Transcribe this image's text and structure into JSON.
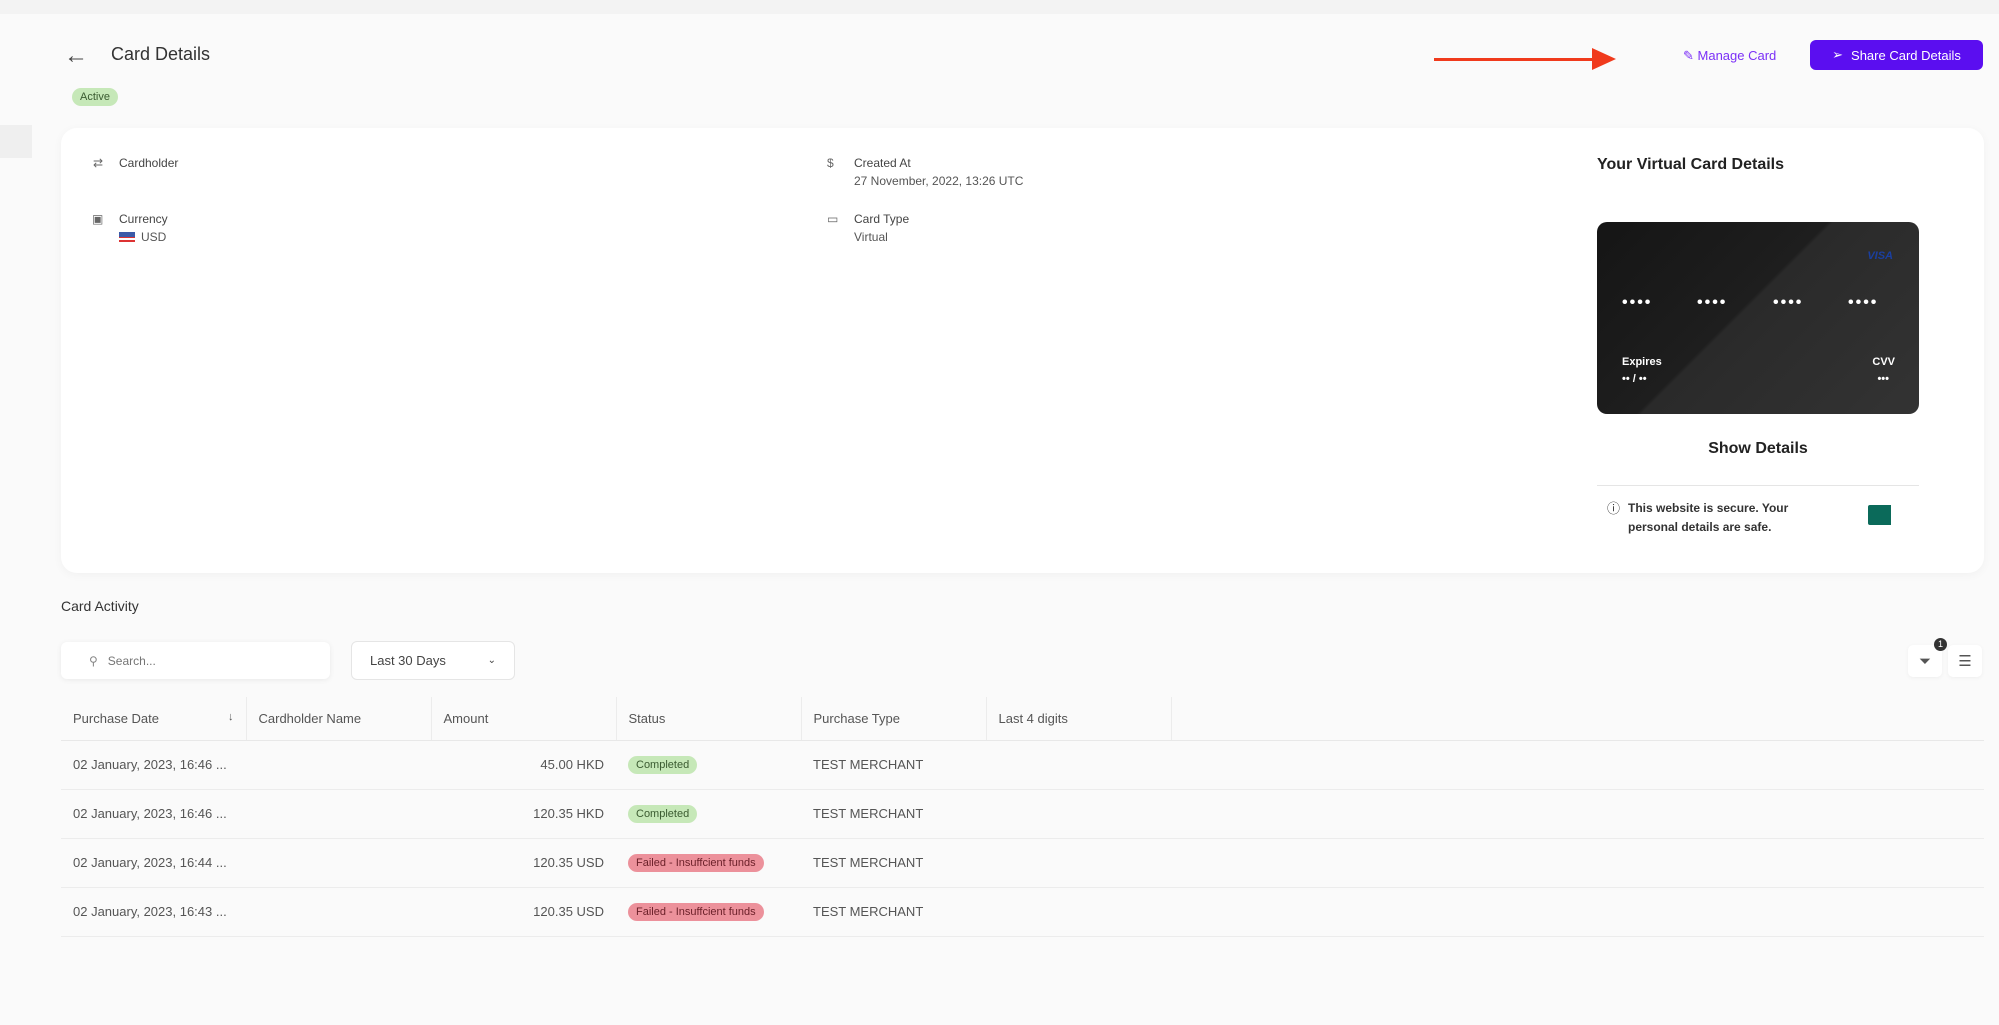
{
  "header": {
    "title": "Card Details",
    "status": "Active",
    "manage_label": "Manage Card",
    "share_label": "Share Card Details"
  },
  "details": {
    "cardholder_label": "Cardholder",
    "currency_label": "Currency",
    "currency_value": "USD",
    "created_label": "Created At",
    "created_value": "27 November, 2022, 13:26 UTC",
    "type_label": "Card Type",
    "type_value": "Virtual"
  },
  "virtual_card": {
    "title": "Your Virtual Card Details",
    "brand": "VISA",
    "number_groups": [
      "••••",
      "••••",
      "••••",
      "••••"
    ],
    "expires_label": "Expires",
    "expires_value": "•• / ••",
    "cvv_label": "CVV",
    "cvv_value": "•••",
    "show_details": "Show Details",
    "secure_text": "This website is secure. Your personal details are safe.",
    "pci_logo": "PCI DSS Certified"
  },
  "activity": {
    "title": "Card Activity",
    "search_placeholder": "Search...",
    "range": "Last 30 Days",
    "filter_count": "1",
    "columns": [
      "Purchase Date",
      "Cardholder Name",
      "Amount",
      "Status",
      "Purchase Type",
      "Last 4 digits"
    ],
    "rows": [
      {
        "date": "02 January, 2023, 16:46 ...",
        "name": "",
        "amount": "45.00 HKD",
        "status": "Completed",
        "type": "TEST MERCHANT",
        "last4": ""
      },
      {
        "date": "02 January, 2023, 16:46 ...",
        "name": "",
        "amount": "120.35 HKD",
        "status": "Completed",
        "type": "TEST MERCHANT",
        "last4": ""
      },
      {
        "date": "02 January, 2023, 16:44 ...",
        "name": "",
        "amount": "120.35 USD",
        "status": "Failed - Insuffcient funds",
        "type": "TEST MERCHANT",
        "last4": ""
      },
      {
        "date": "02 January, 2023, 16:43 ...",
        "name": "",
        "amount": "120.35 USD",
        "status": "Failed - Insuffcient funds",
        "type": "TEST MERCHANT",
        "last4": ""
      }
    ]
  },
  "colors": {
    "accent": "#5b0ef0",
    "success": "#c6e8b8",
    "danger": "#ec919b",
    "annotation_arrow": "#f03a1c"
  }
}
